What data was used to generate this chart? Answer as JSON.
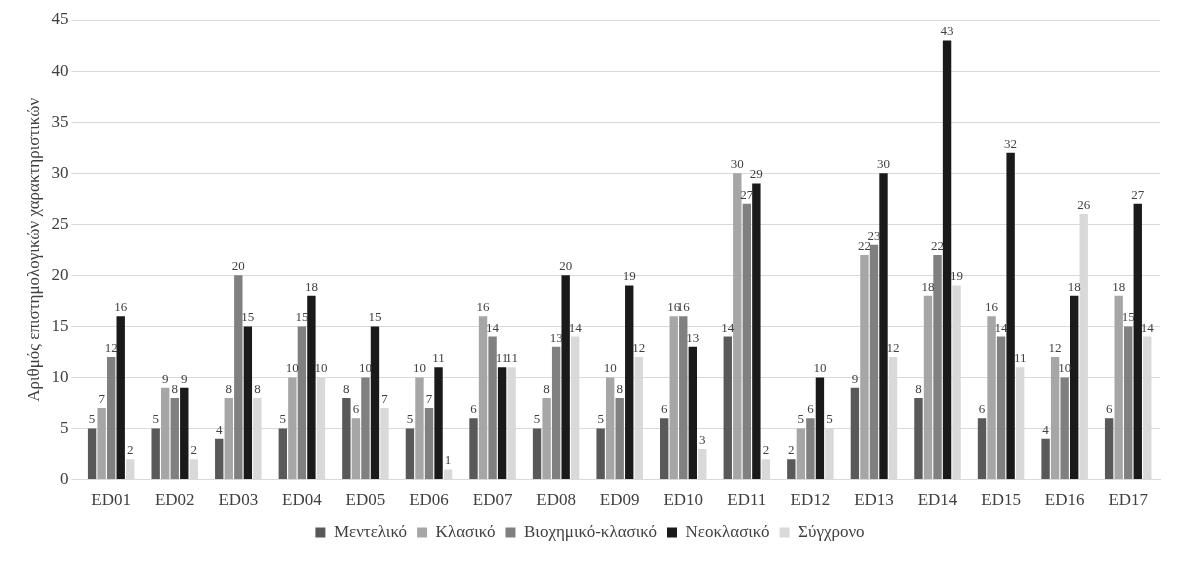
{
  "chart_data": {
    "type": "bar",
    "ylabel": "Αριθμός επιστημολογικών χαρακτηριστικών",
    "categories": [
      "ED01",
      "ED02",
      "ED03",
      "ED04",
      "ED05",
      "ED06",
      "ED07",
      "ED08",
      "ED09",
      "ED10",
      "ED11",
      "ED12",
      "ED13",
      "ED14",
      "ED15",
      "ED16",
      "ED17"
    ],
    "series": [
      {
        "name": "Μεντελικό",
        "color": "#595959",
        "values": [
          5,
          5,
          4,
          5,
          8,
          5,
          6,
          5,
          5,
          6,
          14,
          2,
          9,
          8,
          6,
          4,
          6
        ]
      },
      {
        "name": "Κλασικό",
        "color": "#a6a6a6",
        "values": [
          7,
          9,
          8,
          10,
          6,
          10,
          16,
          8,
          10,
          16,
          30,
          5,
          22,
          18,
          16,
          12,
          18
        ]
      },
      {
        "name": "Βιοχημικό-κλασικό",
        "color": "#808080",
        "values": [
          12,
          8,
          20,
          15,
          10,
          7,
          14,
          13,
          8,
          16,
          27,
          6,
          23,
          22,
          14,
          10,
          15
        ]
      },
      {
        "name": "Νεοκλασικό",
        "color": "#1a1a1a",
        "values": [
          16,
          9,
          15,
          18,
          15,
          11,
          11,
          20,
          19,
          13,
          29,
          10,
          30,
          43,
          32,
          18,
          27
        ]
      },
      {
        "name": "Σύγχρονο",
        "color": "#d9d9d9",
        "values": [
          2,
          2,
          8,
          10,
          7,
          1,
          11,
          14,
          12,
          3,
          2,
          5,
          12,
          19,
          11,
          26,
          14
        ]
      }
    ],
    "ylim": [
      0,
      45
    ],
    "yticks": [
      0,
      5,
      10,
      15,
      20,
      25,
      30,
      35,
      40,
      45
    ],
    "grid": "y",
    "legend": "bottom",
    "data_labels": true
  }
}
